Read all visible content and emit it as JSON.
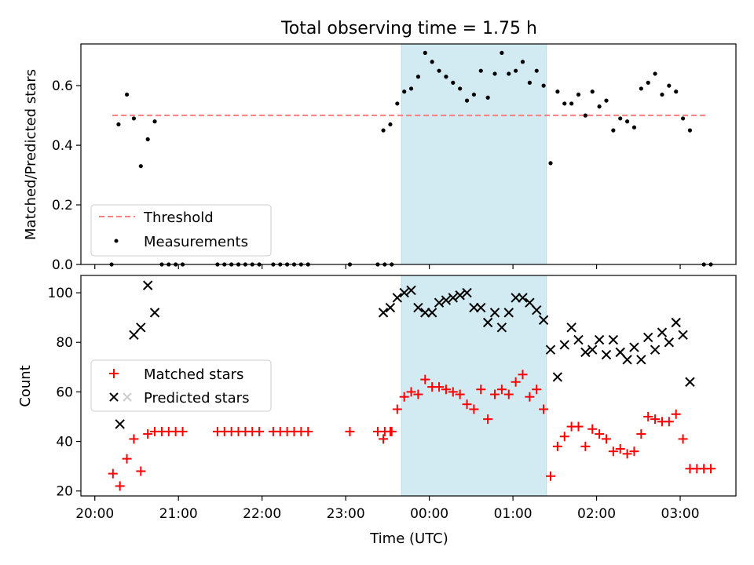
{
  "chart_data": [
    {
      "type": "scatter",
      "title": "Total observing time = 1.75 h",
      "ylabel": "Matched/Predicted stars",
      "xlabel": "",
      "ylim": [
        0,
        0.74
      ],
      "yticks": [
        "0.0",
        "0.2",
        "0.4",
        "0.6"
      ],
      "legend_position": "lower left",
      "legend": [
        "Threshold",
        "Measurements"
      ],
      "threshold": 0.5,
      "threshold_color": "#ff7f7f",
      "shaded_region": {
        "start": "23:40",
        "end": "01:24",
        "color": "#add8e6"
      },
      "measurements": [
        [
          "20:12",
          0.0
        ],
        [
          "20:17",
          0.47
        ],
        [
          "20:23",
          0.57
        ],
        [
          "20:28",
          0.49
        ],
        [
          "20:33",
          0.33
        ],
        [
          "20:38",
          0.42
        ],
        [
          "20:43",
          0.48
        ],
        [
          "20:48",
          0.0
        ],
        [
          "20:53",
          0.0
        ],
        [
          "20:58",
          0.0
        ],
        [
          "21:03",
          0.0
        ],
        [
          "21:28",
          0.0
        ],
        [
          "21:33",
          0.0
        ],
        [
          "21:38",
          0.0
        ],
        [
          "21:43",
          0.0
        ],
        [
          "21:48",
          0.0
        ],
        [
          "21:53",
          0.0
        ],
        [
          "21:58",
          0.0
        ],
        [
          "22:08",
          0.0
        ],
        [
          "22:13",
          0.0
        ],
        [
          "22:18",
          0.0
        ],
        [
          "22:23",
          0.0
        ],
        [
          "22:28",
          0.0
        ],
        [
          "22:33",
          0.0
        ],
        [
          "23:03",
          0.0
        ],
        [
          "23:23",
          0.0
        ],
        [
          "23:28",
          0.0
        ],
        [
          "23:33",
          0.0
        ],
        [
          "23:27",
          0.45
        ],
        [
          "23:32",
          0.47
        ],
        [
          "23:37",
          0.54
        ],
        [
          "23:42",
          0.58
        ],
        [
          "23:47",
          0.59
        ],
        [
          "23:52",
          0.63
        ],
        [
          "23:57",
          0.71
        ],
        [
          "00:02",
          0.68
        ],
        [
          "00:07",
          0.65
        ],
        [
          "00:12",
          0.63
        ],
        [
          "00:17",
          0.61
        ],
        [
          "00:22",
          0.59
        ],
        [
          "00:27",
          0.55
        ],
        [
          "00:32",
          0.57
        ],
        [
          "00:37",
          0.65
        ],
        [
          "00:42",
          0.56
        ],
        [
          "00:47",
          0.64
        ],
        [
          "00:52",
          0.71
        ],
        [
          "00:57",
          0.64
        ],
        [
          "01:02",
          0.65
        ],
        [
          "01:07",
          0.68
        ],
        [
          "01:12",
          0.61
        ],
        [
          "01:17",
          0.65
        ],
        [
          "01:22",
          0.6
        ],
        [
          "01:27",
          0.34
        ],
        [
          "01:32",
          0.58
        ],
        [
          "01:37",
          0.54
        ],
        [
          "01:42",
          0.54
        ],
        [
          "01:47",
          0.57
        ],
        [
          "01:52",
          0.5
        ],
        [
          "01:57",
          0.58
        ],
        [
          "02:02",
          0.53
        ],
        [
          "02:07",
          0.55
        ],
        [
          "02:12",
          0.45
        ],
        [
          "02:17",
          0.49
        ],
        [
          "02:22",
          0.48
        ],
        [
          "02:27",
          0.46
        ],
        [
          "02:32",
          0.59
        ],
        [
          "02:37",
          0.61
        ],
        [
          "02:42",
          0.64
        ],
        [
          "02:47",
          0.57
        ],
        [
          "02:52",
          0.6
        ],
        [
          "02:57",
          0.58
        ],
        [
          "03:02",
          0.49
        ],
        [
          "03:07",
          0.45
        ],
        [
          "03:17",
          0.0
        ],
        [
          "03:22",
          0.0
        ]
      ]
    },
    {
      "type": "scatter",
      "title": "",
      "ylabel": "Count",
      "xlabel": "Time (UTC)",
      "ylim": [
        18,
        107
      ],
      "yticks": [
        "20",
        "40",
        "60",
        "80",
        "100"
      ],
      "xlim": [
        "20:00",
        "03:40"
      ],
      "xticks": [
        "20:00",
        "21:00",
        "22:00",
        "23:00",
        "00:00",
        "01:00",
        "02:00",
        "03:00"
      ],
      "legend_position": "center left",
      "series": [
        {
          "name": "Matched stars",
          "marker": "+",
          "color": "#ff0000",
          "points": [
            [
              "20:13",
              27
            ],
            [
              "20:18",
              22
            ],
            [
              "20:23",
              33
            ],
            [
              "20:28",
              41
            ],
            [
              "20:33",
              28
            ],
            [
              "20:38",
              43
            ],
            [
              "20:43",
              44
            ],
            [
              "20:48",
              44
            ],
            [
              "20:53",
              44
            ],
            [
              "20:58",
              44
            ],
            [
              "21:03",
              44
            ],
            [
              "21:28",
              44
            ],
            [
              "21:33",
              44
            ],
            [
              "21:38",
              44
            ],
            [
              "21:43",
              44
            ],
            [
              "21:48",
              44
            ],
            [
              "21:53",
              44
            ],
            [
              "21:58",
              44
            ],
            [
              "22:08",
              44
            ],
            [
              "22:13",
              44
            ],
            [
              "22:18",
              44
            ],
            [
              "22:23",
              44
            ],
            [
              "22:28",
              44
            ],
            [
              "22:33",
              44
            ],
            [
              "23:03",
              44
            ],
            [
              "23:23",
              44
            ],
            [
              "23:28",
              44
            ],
            [
              "23:33",
              44
            ],
            [
              "23:27",
              41
            ],
            [
              "23:32",
              44
            ],
            [
              "23:37",
              53
            ],
            [
              "23:42",
              58
            ],
            [
              "23:47",
              60
            ],
            [
              "23:52",
              59
            ],
            [
              "23:57",
              65
            ],
            [
              "00:02",
              62
            ],
            [
              "00:07",
              62
            ],
            [
              "00:12",
              61
            ],
            [
              "00:17",
              60
            ],
            [
              "00:22",
              59
            ],
            [
              "00:27",
              55
            ],
            [
              "00:32",
              53
            ],
            [
              "00:37",
              61
            ],
            [
              "00:42",
              49
            ],
            [
              "00:47",
              59
            ],
            [
              "00:52",
              61
            ],
            [
              "00:57",
              59
            ],
            [
              "01:02",
              64
            ],
            [
              "01:07",
              67
            ],
            [
              "01:12",
              58
            ],
            [
              "01:17",
              61
            ],
            [
              "01:22",
              53
            ],
            [
              "01:27",
              26
            ],
            [
              "01:32",
              38
            ],
            [
              "01:37",
              42
            ],
            [
              "01:42",
              46
            ],
            [
              "01:47",
              46
            ],
            [
              "01:52",
              38
            ],
            [
              "01:57",
              45
            ],
            [
              "02:02",
              43
            ],
            [
              "02:07",
              41
            ],
            [
              "02:12",
              36
            ],
            [
              "02:17",
              37
            ],
            [
              "02:22",
              35
            ],
            [
              "02:27",
              36
            ],
            [
              "02:32",
              43
            ],
            [
              "02:37",
              50
            ],
            [
              "02:42",
              49
            ],
            [
              "02:47",
              48
            ],
            [
              "02:52",
              48
            ],
            [
              "02:57",
              51
            ],
            [
              "03:02",
              41
            ],
            [
              "03:07",
              29
            ],
            [
              "03:12",
              29
            ],
            [
              "03:17",
              29
            ],
            [
              "03:22",
              29
            ]
          ]
        },
        {
          "name": "Predicted stars",
          "marker": "x",
          "color": "#000000",
          "points": [
            [
              "20:18",
              47
            ],
            [
              "20:28",
              83
            ],
            [
              "20:33",
              86
            ],
            [
              "20:38",
              103
            ],
            [
              "20:43",
              92
            ],
            [
              "23:27",
              92
            ],
            [
              "23:32",
              94
            ],
            [
              "23:37",
              98
            ],
            [
              "23:42",
              100
            ],
            [
              "23:47",
              101
            ],
            [
              "23:52",
              94
            ],
            [
              "23:57",
              92
            ],
            [
              "00:02",
              92
            ],
            [
              "00:07",
              96
            ],
            [
              "00:12",
              97
            ],
            [
              "00:17",
              98
            ],
            [
              "00:22",
              99
            ],
            [
              "00:27",
              100
            ],
            [
              "00:32",
              94
            ],
            [
              "00:37",
              94
            ],
            [
              "00:42",
              88
            ],
            [
              "00:47",
              92
            ],
            [
              "00:52",
              86
            ],
            [
              "00:57",
              92
            ],
            [
              "01:02",
              98
            ],
            [
              "01:07",
              98
            ],
            [
              "01:12",
              96
            ],
            [
              "01:17",
              93
            ],
            [
              "01:22",
              89
            ],
            [
              "01:27",
              77
            ],
            [
              "01:32",
              66
            ],
            [
              "01:37",
              79
            ],
            [
              "01:42",
              86
            ],
            [
              "01:47",
              81
            ],
            [
              "01:52",
              76
            ],
            [
              "01:57",
              77
            ],
            [
              "02:02",
              81
            ],
            [
              "02:07",
              75
            ],
            [
              "02:12",
              81
            ],
            [
              "02:17",
              76
            ],
            [
              "02:22",
              73
            ],
            [
              "02:27",
              78
            ],
            [
              "02:32",
              73
            ],
            [
              "02:37",
              82
            ],
            [
              "02:42",
              77
            ],
            [
              "02:47",
              84
            ],
            [
              "02:52",
              80
            ],
            [
              "02:57",
              88
            ],
            [
              "03:02",
              83
            ],
            [
              "03:07",
              64
            ]
          ]
        }
      ]
    }
  ]
}
